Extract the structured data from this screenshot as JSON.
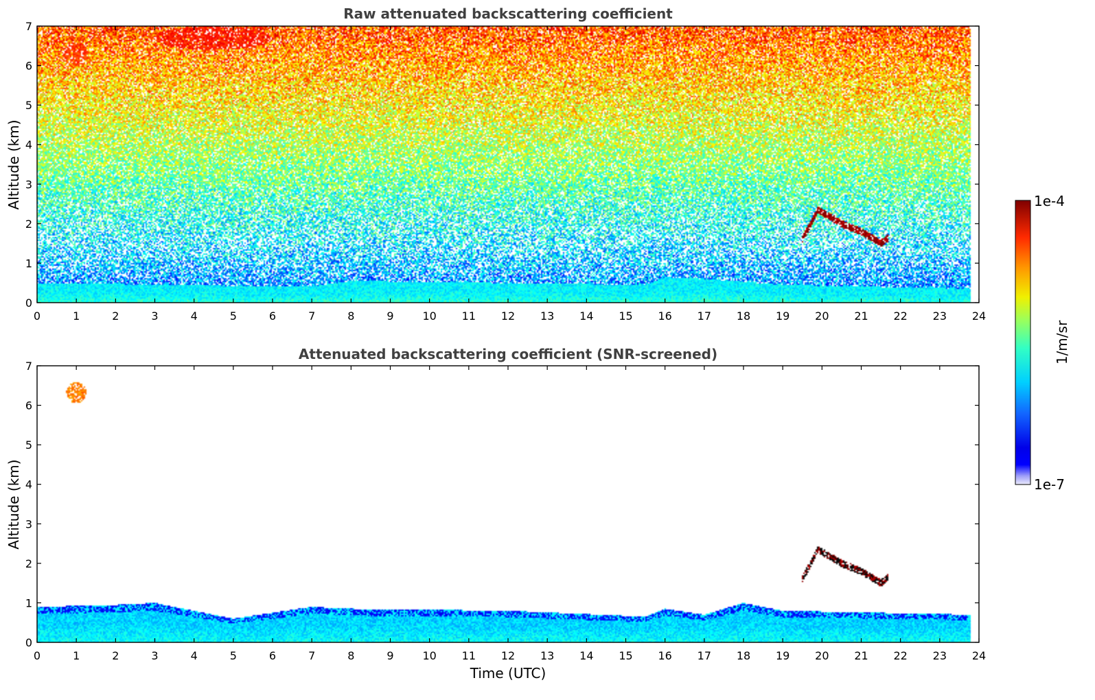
{
  "chart_data": [
    {
      "type": "heatmap",
      "title": "Raw attenuated backscattering coefficient",
      "xlabel": "",
      "ylabel": "Altitude (km)",
      "xlim": [
        0,
        24
      ],
      "ylim": [
        0,
        7
      ],
      "x_ticks": [
        "0",
        "1",
        "2",
        "3",
        "4",
        "5",
        "6",
        "7",
        "8",
        "9",
        "10",
        "11",
        "12",
        "13",
        "14",
        "15",
        "16",
        "17",
        "18",
        "19",
        "20",
        "21",
        "22",
        "23",
        "24"
      ],
      "y_ticks": [
        "0",
        "1",
        "2",
        "3",
        "4",
        "5",
        "6",
        "7"
      ],
      "data_end_hour": 23.8,
      "features": [
        {
          "kind": "boundary_layer",
          "hours": [
            0,
            7,
            8,
            15.5,
            16,
            17,
            19,
            23.8
          ],
          "top_km": [
            0.5,
            0.4,
            0.55,
            0.45,
            0.65,
            0.6,
            0.45,
            0.35
          ],
          "value_log10": -5.9
        },
        {
          "kind": "noise_gradient",
          "alt_low_km": 0.5,
          "alt_high_km": 7,
          "value_log10_low": -6.2,
          "value_log10_high": -4.6
        },
        {
          "kind": "cloud",
          "hours": [
            19.5,
            19.9,
            20.5,
            21.0,
            21.5,
            21.7
          ],
          "alt_km": [
            1.6,
            2.35,
            2.0,
            1.8,
            1.5,
            1.65
          ],
          "value_log10": -4.1
        },
        {
          "kind": "patch",
          "hours": [
            0.7,
            1.3
          ],
          "alt_km": [
            6.0,
            6.6
          ],
          "value_log10": -4.6
        },
        {
          "kind": "patch",
          "hours": [
            3.0,
            6.0
          ],
          "alt_km": [
            6.4,
            7.0
          ],
          "value_log10": -4.5
        }
      ]
    },
    {
      "type": "heatmap",
      "title": "Attenuated backscattering coefficient (SNR-screened)",
      "xlabel": "Time (UTC)",
      "ylabel": "Altitude (km)",
      "xlim": [
        0,
        24
      ],
      "ylim": [
        0,
        7
      ],
      "x_ticks": [
        "0",
        "1",
        "2",
        "3",
        "4",
        "5",
        "6",
        "7",
        "8",
        "9",
        "10",
        "11",
        "12",
        "13",
        "14",
        "15",
        "16",
        "17",
        "18",
        "19",
        "20",
        "21",
        "22",
        "23",
        "24"
      ],
      "y_ticks": [
        "0",
        "1",
        "2",
        "3",
        "4",
        "5",
        "6",
        "7"
      ],
      "data_end_hour": 23.8,
      "features": [
        {
          "kind": "boundary_layer",
          "hours": [
            0,
            2,
            3,
            5,
            7,
            8,
            12,
            15.5,
            16,
            17,
            18,
            19,
            23.8
          ],
          "top_km": [
            0.9,
            0.95,
            1.0,
            0.6,
            0.9,
            0.85,
            0.8,
            0.65,
            0.85,
            0.7,
            1.0,
            0.8,
            0.7
          ],
          "value_log10": -6.0
        },
        {
          "kind": "cloud",
          "hours": [
            19.5,
            19.9,
            20.5,
            21.0,
            21.5,
            21.7
          ],
          "alt_km": [
            1.6,
            2.35,
            2.0,
            1.8,
            1.5,
            1.65
          ],
          "value_log10": -4.0
        },
        {
          "kind": "patch",
          "hours": [
            0.75,
            1.25
          ],
          "alt_km": [
            6.05,
            6.6
          ],
          "value_log10": -4.8
        }
      ]
    }
  ],
  "colorbar": {
    "label": "1/m/sr",
    "min_label": "1e-7",
    "max_label": "1e-4",
    "scale": "log",
    "colormap": "jet"
  }
}
